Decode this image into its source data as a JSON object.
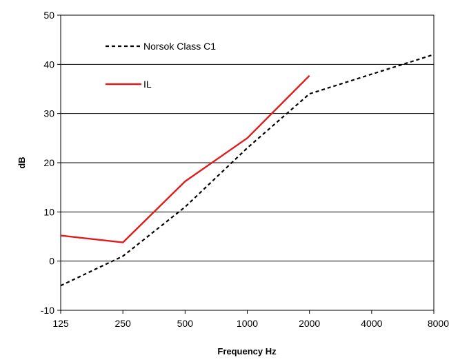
{
  "chart_data": {
    "type": "line",
    "title": "",
    "xlabel": "Frequency Hz",
    "ylabel": "dB",
    "x_scale": "log2",
    "x": [
      "125",
      "250",
      "500",
      "1000",
      "2000",
      "4000",
      "8000"
    ],
    "ylim": [
      -10,
      50
    ],
    "y_ticks": [
      "-10",
      "0",
      "10",
      "20",
      "30",
      "40",
      "50"
    ],
    "grid": "horizontal",
    "legend_position": "top-left",
    "series": [
      {
        "name": "Norsok Class C1",
        "color": "#000000",
        "style": "dashed",
        "x": [
          125,
          250,
          500,
          1000,
          2000,
          4000,
          8000
        ],
        "values": [
          -5,
          1,
          11,
          23,
          34,
          38,
          42
        ]
      },
      {
        "name": "IL",
        "color": "#e31a1c",
        "style": "solid",
        "x": [
          125,
          250,
          500,
          1000,
          2000
        ],
        "values": [
          5.2,
          3.8,
          16.2,
          25,
          37.7
        ]
      }
    ]
  }
}
